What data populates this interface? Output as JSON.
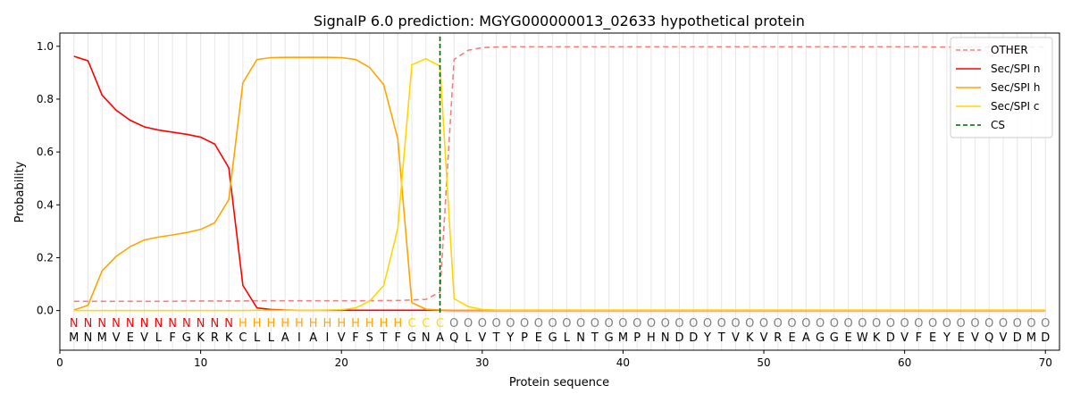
{
  "chart_data": {
    "type": "line",
    "title": "SignalP 6.0 prediction: MGYG000000013_02633 hypothetical protein",
    "xlabel": "Protein sequence",
    "ylabel": "Probability",
    "xlim": [
      0,
      71
    ],
    "ylim": [
      -0.15,
      1.05
    ],
    "xticks": [
      0,
      10,
      20,
      30,
      40,
      50,
      60,
      70
    ],
    "yticks": [
      0.0,
      0.2,
      0.4,
      0.6,
      0.8,
      1.0
    ],
    "x": [
      1,
      2,
      3,
      4,
      5,
      6,
      7,
      8,
      9,
      10,
      11,
      12,
      13,
      14,
      15,
      16,
      17,
      18,
      19,
      20,
      21,
      22,
      23,
      24,
      25,
      26,
      27,
      28,
      29,
      30,
      31,
      32,
      33,
      34,
      35,
      36,
      37,
      38,
      39,
      40,
      41,
      42,
      43,
      44,
      45,
      46,
      47,
      48,
      49,
      50,
      51,
      52,
      53,
      54,
      55,
      56,
      57,
      58,
      59,
      60,
      61,
      62,
      63,
      64,
      65,
      66,
      67,
      68,
      69,
      70
    ],
    "sequence": [
      "M",
      "N",
      "M",
      "V",
      "E",
      "V",
      "L",
      "F",
      "G",
      "K",
      "R",
      "K",
      "C",
      "L",
      "L",
      "A",
      "I",
      "A",
      "I",
      "V",
      "F",
      "S",
      "T",
      "F",
      "G",
      "N",
      "A",
      "Q",
      "L",
      "V",
      "T",
      "Y",
      "P",
      "E",
      "G",
      "L",
      "N",
      "T",
      "G",
      "M",
      "P",
      "H",
      "N",
      "D",
      "D",
      "Y",
      "T",
      "V",
      "K",
      "V",
      "R",
      "E",
      "A",
      "G",
      "G",
      "E",
      "W",
      "K",
      "D",
      "V",
      "F",
      "E",
      "Y",
      "E",
      "V",
      "Q",
      "V",
      "D",
      "M",
      "D"
    ],
    "labels": [
      "N",
      "N",
      "N",
      "N",
      "N",
      "N",
      "N",
      "N",
      "N",
      "N",
      "N",
      "N",
      "H",
      "H",
      "H",
      "H",
      "H",
      "H",
      "H",
      "H",
      "H",
      "H",
      "H",
      "H",
      "C",
      "C",
      "C",
      "O",
      "O",
      "O",
      "O",
      "O",
      "O",
      "O",
      "O",
      "O",
      "O",
      "O",
      "O",
      "O",
      "O",
      "O",
      "O",
      "O",
      "O",
      "O",
      "O",
      "O",
      "O",
      "O",
      "O",
      "O",
      "O",
      "O",
      "O",
      "O",
      "O",
      "O",
      "O",
      "O",
      "O",
      "O",
      "O",
      "O",
      "O",
      "O",
      "O",
      "O",
      "O",
      "O"
    ],
    "label_colors": {
      "N": "#ff0000",
      "H": "#ffa500",
      "C": "#ffd700",
      "O": "#808080"
    },
    "series": [
      {
        "name": "OTHER",
        "color": "#f08080",
        "dashed": true,
        "values": [
          0.035,
          0.035,
          0.035,
          0.035,
          0.035,
          0.035,
          0.035,
          0.035,
          0.036,
          0.036,
          0.036,
          0.036,
          0.036,
          0.037,
          0.037,
          0.037,
          0.037,
          0.037,
          0.037,
          0.037,
          0.037,
          0.037,
          0.038,
          0.038,
          0.04,
          0.042,
          0.07,
          0.95,
          0.985,
          0.995,
          0.997,
          0.998,
          0.998,
          0.998,
          0.998,
          0.998,
          0.998,
          0.998,
          0.998,
          0.998,
          0.998,
          0.998,
          0.998,
          0.998,
          0.998,
          0.998,
          0.998,
          0.998,
          0.998,
          0.998,
          0.998,
          0.998,
          0.998,
          0.998,
          0.998,
          0.998,
          0.998,
          0.998,
          0.998,
          0.998,
          0.998,
          0.997,
          0.997,
          0.997,
          0.997,
          0.997,
          0.997,
          0.997,
          0.997,
          0.997
        ]
      },
      {
        "name": "Sec/SPI n",
        "color": "#ff0000",
        "dashed": false,
        "values": [
          0.962,
          0.945,
          0.815,
          0.758,
          0.72,
          0.695,
          0.683,
          0.675,
          0.667,
          0.656,
          0.63,
          0.54,
          0.095,
          0.01,
          0.004,
          0.002,
          0.001,
          0.001,
          0.001,
          0.001,
          0.001,
          0.001,
          0.001,
          0.001,
          0.001,
          0.001,
          0.001,
          0.0,
          0.0,
          0.0,
          0.0,
          0.0,
          0.0,
          0.0,
          0.0,
          0.0,
          0.0,
          0.0,
          0.0,
          0.0,
          0.0,
          0.0,
          0.0,
          0.0,
          0.0,
          0.0,
          0.0,
          0.0,
          0.0,
          0.0,
          0.0,
          0.0,
          0.0,
          0.0,
          0.0,
          0.0,
          0.0,
          0.0,
          0.0,
          0.0,
          0.0,
          0.0,
          0.0,
          0.0,
          0.0,
          0.0,
          0.0,
          0.0,
          0.0,
          0.0
        ]
      },
      {
        "name": "Sec/SPI h",
        "color": "#ffa500",
        "dashed": false,
        "values": [
          0.002,
          0.02,
          0.15,
          0.205,
          0.242,
          0.267,
          0.278,
          0.286,
          0.295,
          0.307,
          0.332,
          0.42,
          0.862,
          0.95,
          0.957,
          0.958,
          0.958,
          0.958,
          0.958,
          0.957,
          0.95,
          0.92,
          0.855,
          0.65,
          0.03,
          0.005,
          0.002,
          0.001,
          0.001,
          0.001,
          0.001,
          0.001,
          0.001,
          0.001,
          0.001,
          0.001,
          0.001,
          0.001,
          0.001,
          0.001,
          0.001,
          0.001,
          0.001,
          0.001,
          0.001,
          0.001,
          0.001,
          0.001,
          0.001,
          0.001,
          0.001,
          0.001,
          0.001,
          0.001,
          0.001,
          0.001,
          0.001,
          0.001,
          0.001,
          0.001,
          0.001,
          0.001,
          0.001,
          0.001,
          0.001,
          0.001,
          0.001,
          0.001,
          0.001,
          0.001
        ]
      },
      {
        "name": "Sec/SPI c",
        "color": "#ffd700",
        "dashed": false,
        "values": [
          0.0,
          0.0,
          0.0,
          0.0,
          0.0,
          0.0,
          0.0,
          0.0,
          0.0,
          0.0,
          0.0,
          0.0,
          0.0,
          0.001,
          0.001,
          0.001,
          0.001,
          0.001,
          0.002,
          0.003,
          0.01,
          0.035,
          0.095,
          0.31,
          0.93,
          0.953,
          0.925,
          0.045,
          0.015,
          0.004,
          0.002,
          0.002,
          0.002,
          0.002,
          0.002,
          0.002,
          0.002,
          0.002,
          0.002,
          0.002,
          0.002,
          0.002,
          0.002,
          0.002,
          0.002,
          0.002,
          0.002,
          0.002,
          0.002,
          0.002,
          0.002,
          0.002,
          0.002,
          0.002,
          0.002,
          0.002,
          0.002,
          0.002,
          0.002,
          0.002,
          0.002,
          0.002,
          0.002,
          0.002,
          0.002,
          0.002,
          0.002,
          0.002,
          0.002,
          0.002
        ]
      }
    ],
    "cs": {
      "name": "CS",
      "x": 27,
      "color": "#006400"
    },
    "legend": {
      "placement": "top-right",
      "entries": [
        "OTHER",
        "Sec/SPI n",
        "Sec/SPI h",
        "Sec/SPI c",
        "CS"
      ]
    },
    "grid": {
      "vertical_per_residue": true
    }
  }
}
